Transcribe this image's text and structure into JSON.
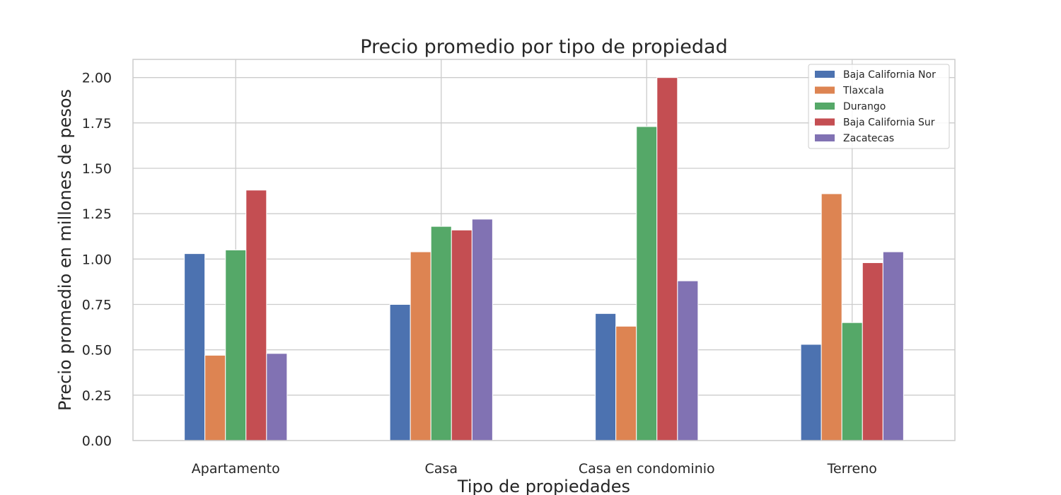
{
  "chart_data": {
    "type": "bar",
    "title": "Precio promedio por tipo de propiedad",
    "xlabel": "Tipo de propiedades",
    "ylabel": "Precio promedio en millones de pesos",
    "categories": [
      "Apartamento",
      "Casa",
      "Casa en condominio",
      "Terreno"
    ],
    "series": [
      {
        "name": "Baja California Nor",
        "color": "#4c72b0",
        "values": [
          1.03,
          0.75,
          0.7,
          0.53
        ]
      },
      {
        "name": "Tlaxcala",
        "color": "#dd8452",
        "values": [
          0.47,
          1.04,
          0.63,
          1.36
        ]
      },
      {
        "name": "Durango",
        "color": "#55a868",
        "values": [
          1.05,
          1.18,
          1.73,
          0.65
        ]
      },
      {
        "name": "Baja California Sur",
        "color": "#c44e52",
        "values": [
          1.38,
          1.16,
          2.0,
          0.98
        ]
      },
      {
        "name": "Zacatecas",
        "color": "#8172b3",
        "values": [
          0.48,
          1.22,
          0.88,
          1.04
        ]
      }
    ],
    "ylim": [
      0,
      2.1
    ],
    "yticks": [
      "0.00",
      "0.25",
      "0.50",
      "0.75",
      "1.00",
      "1.25",
      "1.50",
      "1.75",
      "2.00"
    ],
    "grid": true,
    "legend_position": "top-right"
  }
}
